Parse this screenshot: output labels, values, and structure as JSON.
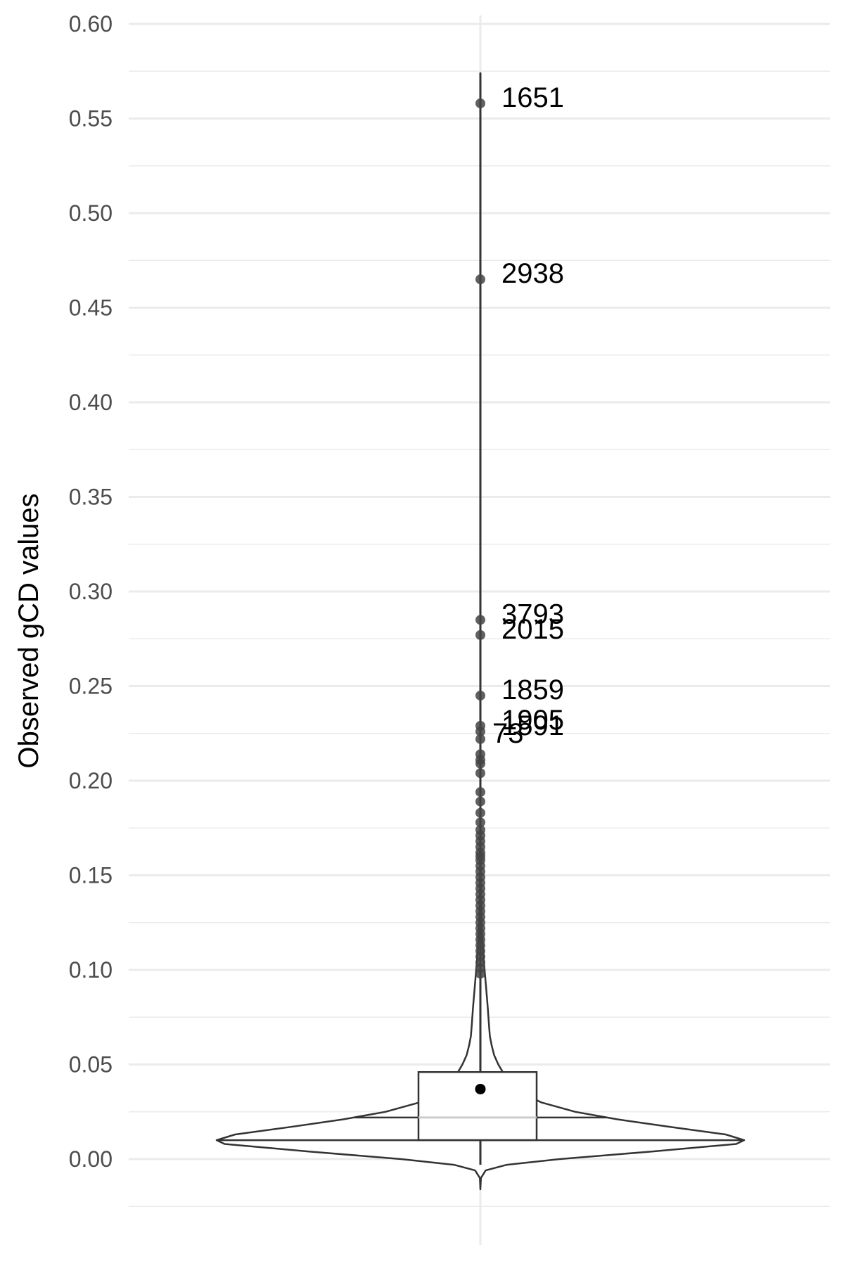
{
  "chart_data": {
    "type": "violin",
    "title": "",
    "xlabel": "",
    "ylabel": "Observed gCD values",
    "ylim": [
      -0.025,
      0.605
    ],
    "y_ticks": [
      "0.00",
      "0.05",
      "0.10",
      "0.15",
      "0.20",
      "0.25",
      "0.30",
      "0.35",
      "0.40",
      "0.45",
      "0.50",
      "0.55",
      "0.60"
    ],
    "grid": true,
    "violin": {
      "min": -0.016,
      "max": 0.574,
      "density": [
        [
          -0.016,
          0.0
        ],
        [
          -0.01,
          0.002
        ],
        [
          -0.006,
          0.02
        ],
        [
          -0.003,
          0.1
        ],
        [
          0.0,
          0.3
        ],
        [
          0.004,
          0.65
        ],
        [
          0.008,
          0.97
        ],
        [
          0.01,
          1.0
        ],
        [
          0.013,
          0.93
        ],
        [
          0.017,
          0.72
        ],
        [
          0.021,
          0.52
        ],
        [
          0.025,
          0.36
        ],
        [
          0.03,
          0.23
        ],
        [
          0.035,
          0.16
        ],
        [
          0.041,
          0.11
        ],
        [
          0.046,
          0.085
        ],
        [
          0.05,
          0.068
        ],
        [
          0.055,
          0.052
        ],
        [
          0.06,
          0.043
        ],
        [
          0.065,
          0.036
        ],
        [
          0.07,
          0.033
        ],
        [
          0.08,
          0.028
        ],
        [
          0.09,
          0.022
        ],
        [
          0.1,
          0.016
        ],
        [
          0.11,
          0.01
        ],
        [
          0.125,
          0.004
        ],
        [
          0.14,
          0.0015
        ],
        [
          0.16,
          0.0008
        ],
        [
          0.2,
          0.0005
        ],
        [
          0.3,
          0.0003
        ],
        [
          0.574,
          0.0
        ]
      ]
    },
    "box": {
      "q1": 0.01,
      "median": 0.022,
      "q3": 0.046,
      "whisker_low": -0.003,
      "whisker_high": 0.574,
      "mean": 0.037
    },
    "outliers": [
      0.558,
      0.465,
      0.285,
      0.277,
      0.245,
      0.229,
      0.226,
      0.222,
      0.214,
      0.211,
      0.209,
      0.204,
      0.194,
      0.189,
      0.183,
      0.178,
      0.174,
      0.171,
      0.168,
      0.165,
      0.162,
      0.16,
      0.158,
      0.155,
      0.152,
      0.149,
      0.146,
      0.143,
      0.14,
      0.137,
      0.134,
      0.131,
      0.128,
      0.125,
      0.122,
      0.119,
      0.116,
      0.113,
      0.11,
      0.107,
      0.104,
      0.101,
      0.098
    ],
    "labeled_points": [
      {
        "label": "1651",
        "y": 0.558
      },
      {
        "label": "2938",
        "y": 0.465
      },
      {
        "label": "3793",
        "y": 0.285
      },
      {
        "label": "2015",
        "y": 0.277
      },
      {
        "label": "1859",
        "y": 0.245
      },
      {
        "label": "1905",
        "y": 0.229
      },
      {
        "label": "1591",
        "y": 0.226
      },
      {
        "label": "73",
        "y": 0.222
      }
    ],
    "colors": {
      "outline": "#333333",
      "grid": "#ebebeb",
      "point": "#444444",
      "median": "#cccccc",
      "mean": "#000000",
      "tick_text": "#4d4d4d"
    }
  }
}
